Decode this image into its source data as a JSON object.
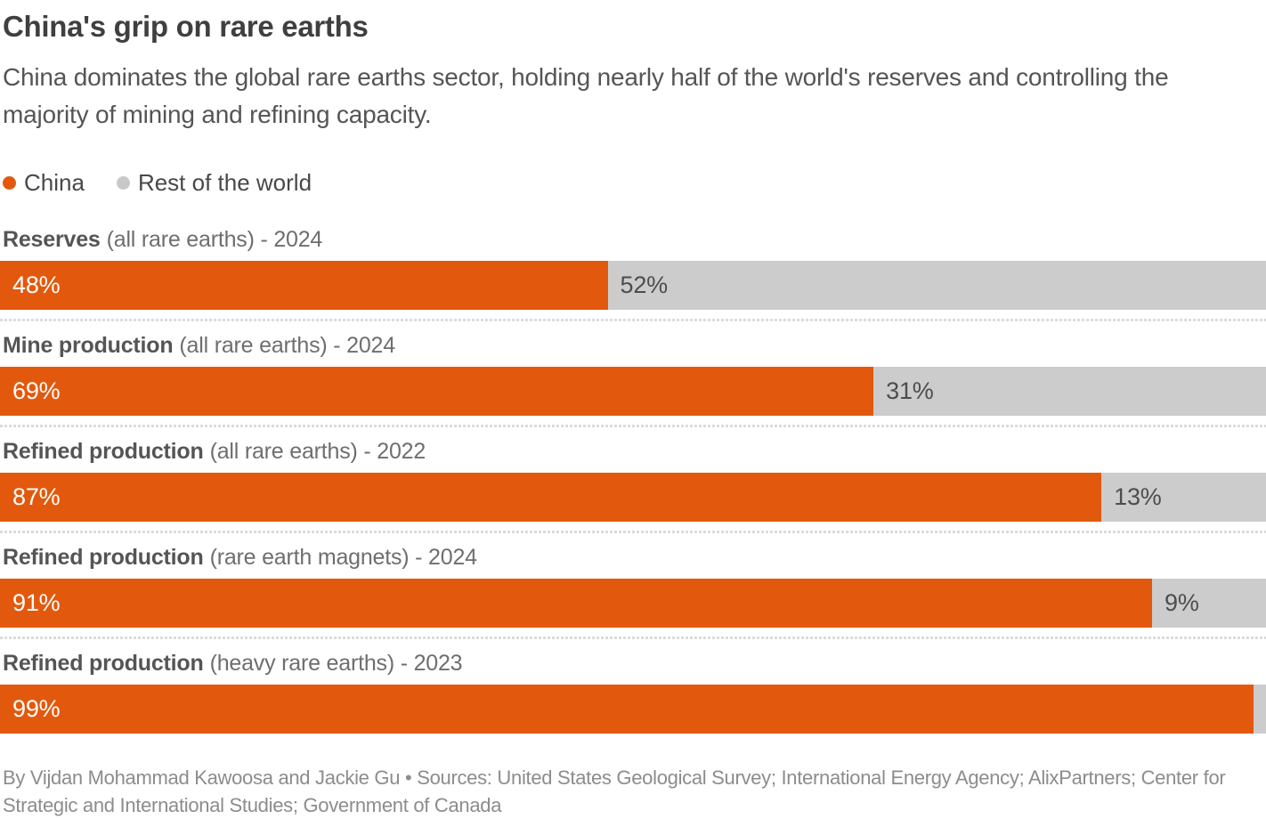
{
  "header": {
    "title": "China's grip on rare earths",
    "subtitle": "China dominates the global rare earths sector, holding nearly half of the world's reserves and controlling the majority of mining and refining capacity."
  },
  "legend": [
    {
      "label": "China",
      "color": "#E2590D"
    },
    {
      "label": "Rest of the world",
      "color": "#C8C8C8"
    }
  ],
  "chart_data": {
    "type": "bar",
    "orientation": "horizontal-stacked",
    "unit": "%",
    "xlim": [
      0,
      100
    ],
    "grid": false,
    "legend_position": "top-left",
    "series_names": [
      "China",
      "Rest of the world"
    ],
    "colors": {
      "china": "#E2590D",
      "rest_of_world": "#CCCCCC"
    },
    "rows": [
      {
        "metric": "Reserves",
        "qualifier": "(all rare earths) - 2024",
        "china": 48,
        "rest_of_world": 52,
        "china_label": "48%",
        "rest_label": "52%"
      },
      {
        "metric": "Mine production",
        "qualifier": "(all rare earths) - 2024",
        "china": 69,
        "rest_of_world": 31,
        "china_label": "69%",
        "rest_label": "31%"
      },
      {
        "metric": "Refined production",
        "qualifier": "(all rare earths) - 2022",
        "china": 87,
        "rest_of_world": 13,
        "china_label": "87%",
        "rest_label": "13%"
      },
      {
        "metric": "Refined production",
        "qualifier": "(rare earth magnets) - 2024",
        "china": 91,
        "rest_of_world": 9,
        "china_label": "91%",
        "rest_label": "9%"
      },
      {
        "metric": "Refined production",
        "qualifier": "(heavy rare earths) - 2023",
        "china": 99,
        "rest_of_world": 1,
        "china_label": "99%",
        "rest_label": ""
      }
    ]
  },
  "footer": {
    "credit": "By Vijdan Mohammad Kawoosa and Jackie Gu • Sources: United States Geological Survey; International Energy Agency; AlixPartners; Center for Strategic and International Studies; Government of Canada"
  }
}
